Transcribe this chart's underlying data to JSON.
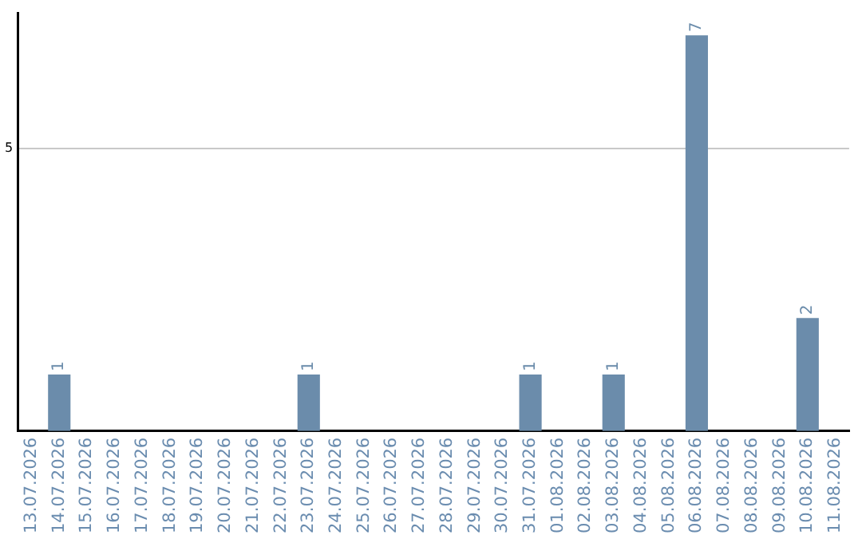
{
  "chart_data": {
    "type": "bar",
    "categories": [
      "13.07.2026",
      "14.07.2026",
      "15.07.2026",
      "16.07.2026",
      "17.07.2026",
      "18.07.2026",
      "19.07.2026",
      "20.07.2026",
      "21.07.2026",
      "22.07.2026",
      "23.07.2026",
      "24.07.2026",
      "25.07.2026",
      "26.07.2026",
      "27.07.2026",
      "28.07.2026",
      "29.07.2026",
      "30.07.2026",
      "31.07.2026",
      "01.08.2026",
      "02.08.2026",
      "03.08.2026",
      "04.08.2026",
      "05.08.2026",
      "06.08.2026",
      "07.08.2026",
      "08.08.2026",
      "09.08.2026",
      "10.08.2026",
      "11.08.2026"
    ],
    "values": [
      null,
      1,
      null,
      null,
      null,
      null,
      null,
      null,
      null,
      null,
      1,
      null,
      null,
      null,
      null,
      null,
      null,
      null,
      1,
      null,
      null,
      1,
      null,
      null,
      7,
      null,
      null,
      null,
      2,
      null
    ],
    "color": "#6b8cab",
    "ylim": [
      0,
      7.4
    ],
    "yticks": [
      5
    ],
    "grid": "y",
    "data_labels": true,
    "legend": false
  }
}
